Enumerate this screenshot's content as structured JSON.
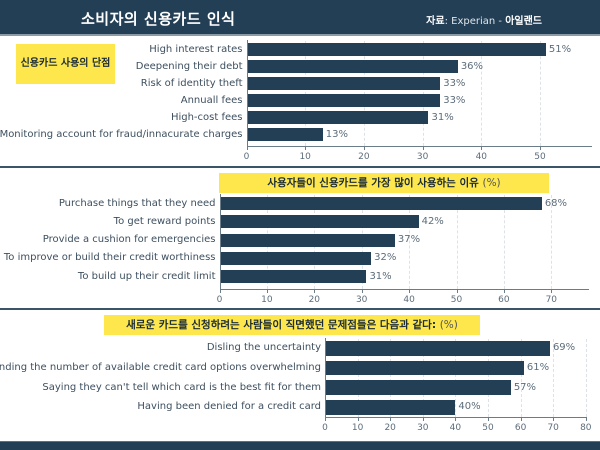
{
  "header": {
    "title": "소비자의 신용카드 인식",
    "source_label": "자료",
    "source_text": ": Experian - ",
    "source_org": "아일랜드"
  },
  "colors": {
    "header_bg": "#233f55",
    "bar": "#233f55",
    "highlight": "#fde74c"
  },
  "chart_data": [
    {
      "type": "bar",
      "orientation": "horizontal",
      "title": "신용카드 사용의 단점",
      "categories": [
        "High interest rates",
        "Deepening their debt",
        "Risk of identity theft",
        "Annuall fees",
        "High-cost fees",
        "Monitoring account for fraud/innacurate charges"
      ],
      "values": [
        51,
        36,
        33,
        33,
        31,
        13
      ],
      "value_labels": [
        "51%",
        "36%",
        "33%",
        "33%",
        "31%",
        "13%"
      ],
      "xticks": [
        "0",
        "10",
        "20",
        "30",
        "40",
        "50"
      ],
      "xlim": [
        0,
        59
      ]
    },
    {
      "type": "bar",
      "orientation": "horizontal",
      "title": "사용자들이 신용카드를 가장 많이 사용하는 이유",
      "title_unit": "(%)",
      "categories": [
        "Purchase things that they need",
        "To get reward points",
        "Provide a cushion for emergencies",
        "To improve or build their credit worthiness",
        "To build up their credit limit"
      ],
      "values": [
        68,
        42,
        37,
        32,
        31
      ],
      "value_labels": [
        "68%",
        "42%",
        "37%",
        "32%",
        "31%"
      ],
      "xticks": [
        "0",
        "10",
        "20",
        "30",
        "40",
        "50",
        "60",
        "70"
      ],
      "xlim": [
        0,
        78
      ]
    },
    {
      "type": "bar",
      "orientation": "horizontal",
      "title": "새로운 카드를 신청하려는 사람들이 직면했던 문제점들은 다음과 같다:",
      "title_unit": "(%)",
      "categories": [
        "Disling the uncertainty",
        "Finding the number of available credit card options overwhelming",
        "Saying they can't tell which card is the best fit for them",
        "Having been denied for a credit card"
      ],
      "values": [
        69,
        61,
        57,
        40
      ],
      "value_labels": [
        "69%",
        "61%",
        "57%",
        "40%"
      ],
      "xticks": [
        "0",
        "10",
        "20",
        "30",
        "40",
        "50",
        "60",
        "70",
        "80"
      ],
      "xlim": [
        0,
        81
      ]
    }
  ]
}
